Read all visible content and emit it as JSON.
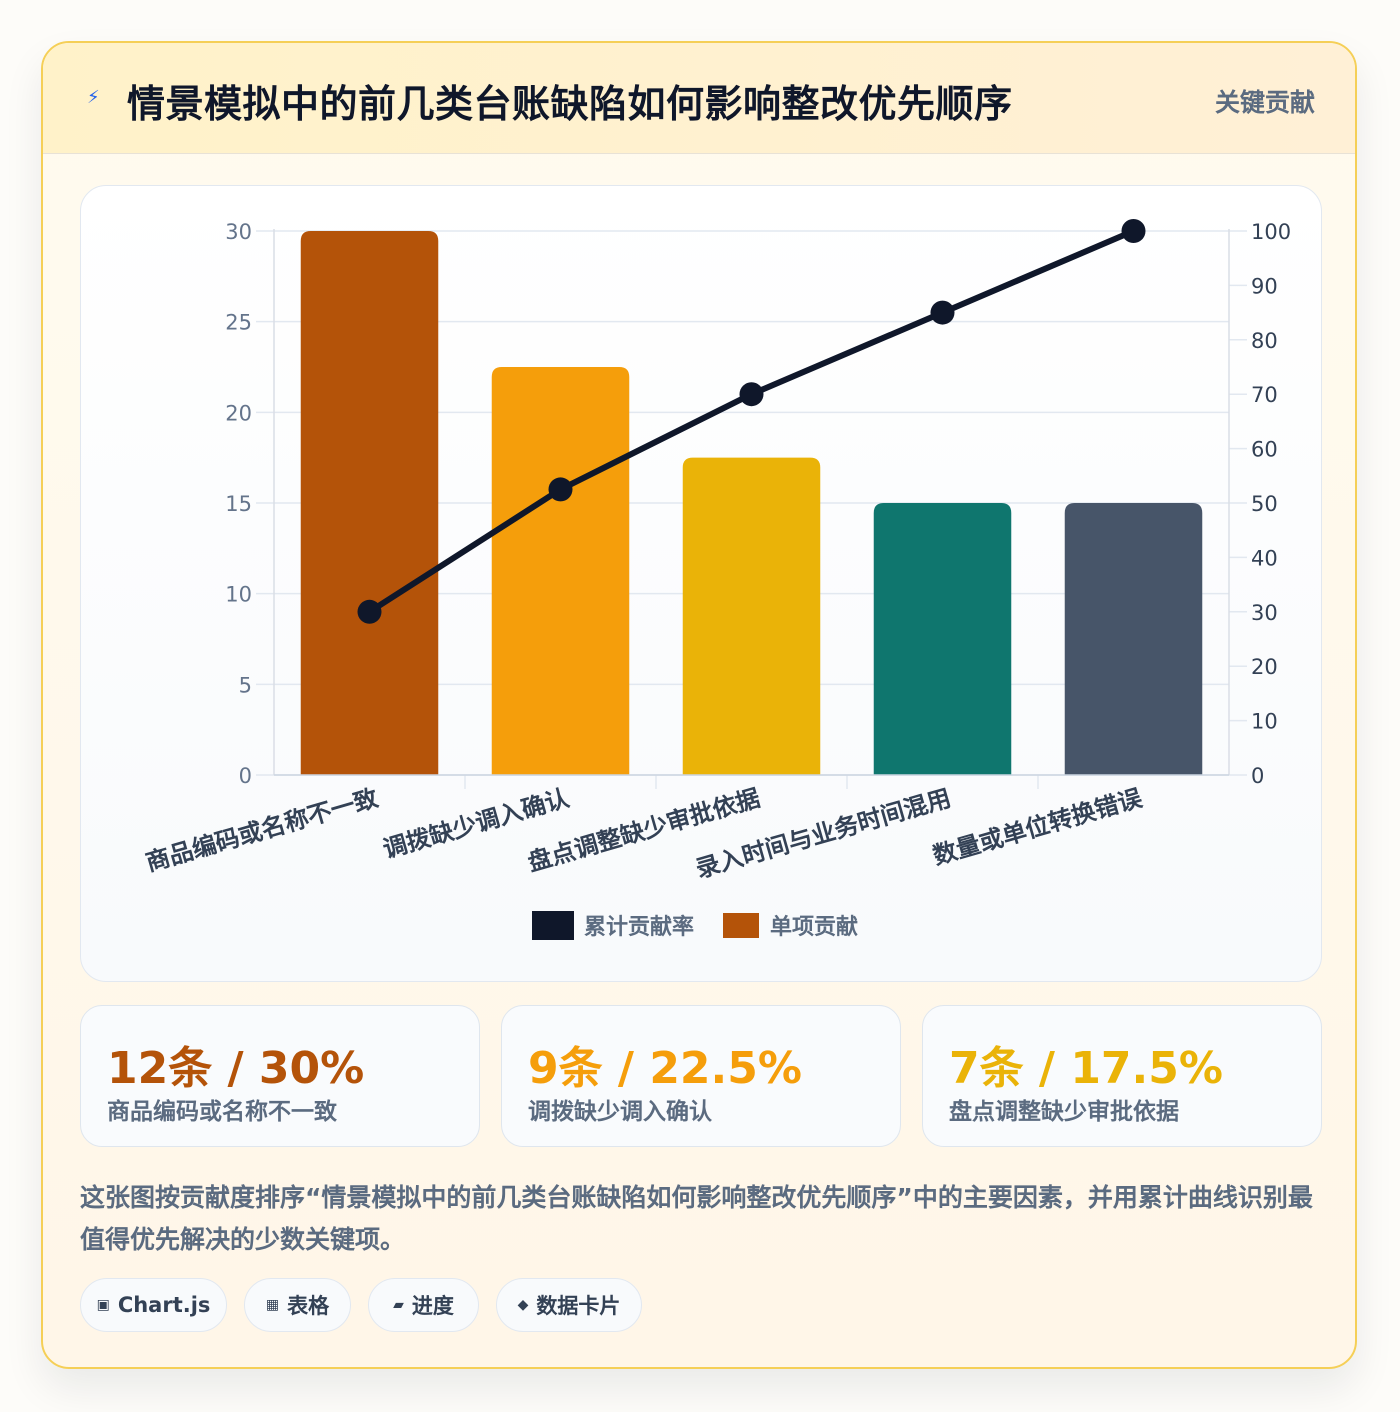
{
  "header": {
    "icon": "lightning-icon",
    "title": "情景模拟中的前几类台账缺陷如何影响整改优先顺序",
    "tag": "关键贡献"
  },
  "chart_data": {
    "type": "bar",
    "categories": [
      "商品编码或名称不一致",
      "调拨缺少调入确认",
      "盘点调整缺少审批依据",
      "录入时间与业务时间混用",
      "数量或单位转换错误"
    ],
    "series": [
      {
        "name": "单项贡献",
        "type": "bar",
        "axis": "left",
        "values": [
          30,
          22.5,
          17.5,
          15,
          15
        ],
        "colors": [
          "#b45309",
          "#f59e0b",
          "#eab308",
          "#0f766e",
          "#475569"
        ]
      },
      {
        "name": "累计贡献率",
        "type": "line",
        "axis": "right",
        "values": [
          30,
          52.5,
          70,
          85,
          100
        ],
        "color": "#0f172a"
      }
    ],
    "y_left": {
      "min": 0,
      "max": 30,
      "ticks": [
        "0",
        "5",
        "10",
        "15",
        "20",
        "25",
        "30"
      ]
    },
    "y_right": {
      "min": 0,
      "max": 100,
      "ticks": [
        "0",
        "10",
        "20",
        "30",
        "40",
        "50",
        "60",
        "70",
        "80",
        "90",
        "100"
      ]
    },
    "grid": true,
    "legend": {
      "position": "bottom",
      "items": [
        "累计贡献率",
        "单项贡献"
      ]
    }
  },
  "stats": [
    {
      "value": "12条 / 30%",
      "label": "商品编码或名称不一致",
      "color": "#b45309"
    },
    {
      "value": "9条 / 22.5%",
      "label": "调拨缺少调入确认",
      "color": "#f59e0b"
    },
    {
      "value": "7条 / 17.5%",
      "label": "盘点调整缺少审批依据",
      "color": "#eab308"
    }
  ],
  "description": "这张图按贡献度排序“情景模拟中的前几类台账缺陷如何影响整改优先顺序”中的主要因素，并用累计曲线识别最值得优先解决的少数关键项。",
  "pills": [
    {
      "icon": "▣",
      "label": "Chart.js"
    },
    {
      "icon": "▦",
      "label": "表格"
    },
    {
      "icon": "▰",
      "label": "进度"
    },
    {
      "icon": "◆",
      "label": "数据卡片"
    }
  ]
}
